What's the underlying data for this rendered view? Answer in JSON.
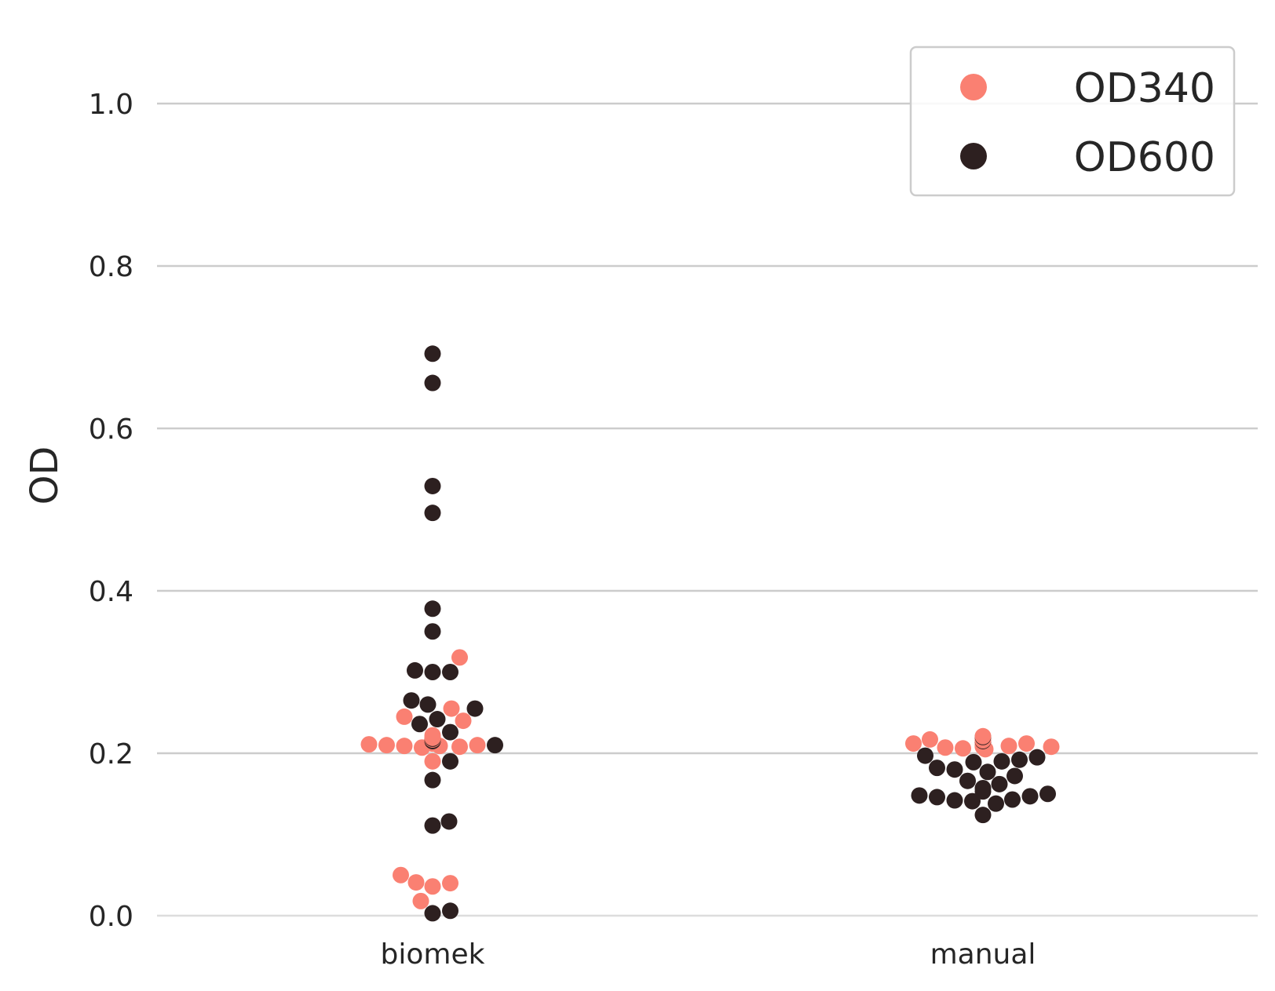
{
  "chart_data": {
    "type": "scatter",
    "title": "",
    "xlabel": "",
    "ylabel": "OD",
    "ylim": [
      0.0,
      1.0
    ],
    "yticks": [
      "0.0",
      "0.2",
      "0.4",
      "0.6",
      "0.8",
      "1.0"
    ],
    "categories": [
      "biomek",
      "manual"
    ],
    "grid": "horizontal",
    "legend": {
      "placement": "top-right",
      "entries": [
        "OD340",
        "OD600"
      ]
    },
    "series": [
      {
        "name": "OD340",
        "color": "#fa8072",
        "points": [
          {
            "category": "biomek",
            "values": [
              0.219,
              0.218,
              0.217,
              0.215,
              0.214,
              0.213,
              0.212,
              0.211,
              0.21,
              0.21,
              0.209,
              0.209,
              0.208,
              0.207,
              0.212,
              0.213,
              0.214,
              0.217,
              0.245,
              0.24,
              0.255,
              0.222,
              0.318,
              0.19,
              0.05,
              0.04,
              0.041,
              0.036,
              0.018
            ]
          },
          {
            "category": "manual",
            "values": [
              0.217,
              0.216,
              0.215,
              0.213,
              0.212,
              0.211,
              0.21,
              0.209,
              0.207,
              0.205,
              0.218,
              0.216,
              0.214,
              0.215,
              0.208,
              0.206,
              0.221,
              0.209,
              0.208,
              0.209,
              0.21,
              0.212,
              0.214,
              0.215
            ]
          }
        ]
      },
      {
        "name": "OD600",
        "color": "#2d2020",
        "points": [
          {
            "category": "biomek",
            "values": [
              0.692,
              0.656,
              0.529,
              0.496,
              0.378,
              0.35,
              0.302,
              0.3,
              0.3,
              0.265,
              0.26,
              0.255,
              0.242,
              0.236,
              0.226,
              0.218,
              0.215,
              0.21,
              0.19,
              0.167,
              0.116,
              0.111,
              0.006,
              0.003
            ]
          },
          {
            "category": "manual",
            "values": [
              0.22,
              0.215,
              0.197,
              0.195,
              0.192,
              0.19,
              0.189,
              0.182,
              0.18,
              0.177,
              0.172,
              0.166,
              0.162,
              0.157,
              0.153,
              0.15,
              0.148,
              0.147,
              0.146,
              0.143,
              0.142,
              0.141,
              0.138,
              0.124
            ]
          }
        ]
      }
    ]
  }
}
